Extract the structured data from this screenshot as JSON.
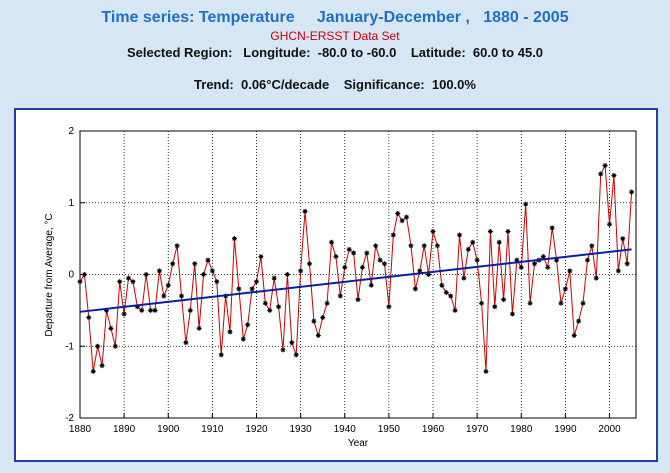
{
  "chart_data": {
    "type": "line",
    "title": "Time series: Temperature     January-December ,   1880 - 2005",
    "subtitle": "GHCN-ERSST Data Set",
    "region": "Selected Region:   Longitude:  -80.0 to -60.0    Latitude:  60.0 to 45.0",
    "trend_text": "Trend:  0.06°C/decade    Significance:  100.0%",
    "xlabel": "Year",
    "ylabel": "Departure from Average, °C",
    "x": [
      1880,
      1881,
      1882,
      1883,
      1884,
      1885,
      1886,
      1887,
      1888,
      1889,
      1890,
      1891,
      1892,
      1893,
      1894,
      1895,
      1896,
      1897,
      1898,
      1899,
      1900,
      1901,
      1902,
      1903,
      1904,
      1905,
      1906,
      1907,
      1908,
      1909,
      1910,
      1911,
      1912,
      1913,
      1914,
      1915,
      1916,
      1917,
      1918,
      1919,
      1920,
      1921,
      1922,
      1923,
      1924,
      1925,
      1926,
      1927,
      1928,
      1929,
      1930,
      1931,
      1932,
      1933,
      1934,
      1935,
      1936,
      1937,
      1938,
      1939,
      1940,
      1941,
      1942,
      1943,
      1944,
      1945,
      1946,
      1947,
      1948,
      1949,
      1950,
      1951,
      1952,
      1953,
      1954,
      1955,
      1956,
      1957,
      1958,
      1959,
      1960,
      1961,
      1962,
      1963,
      1964,
      1965,
      1966,
      1967,
      1968,
      1969,
      1970,
      1971,
      1972,
      1973,
      1974,
      1975,
      1976,
      1977,
      1978,
      1979,
      1980,
      1981,
      1982,
      1983,
      1984,
      1985,
      1986,
      1987,
      1988,
      1989,
      1990,
      1991,
      1992,
      1993,
      1994,
      1995,
      1996,
      1997,
      1998,
      1999,
      2000,
      2001,
      2002,
      2003,
      2004,
      2005
    ],
    "series": [
      {
        "name": "Temperature",
        "color": "#cc0000",
        "marker_color": "#000000",
        "values": [
          -0.1,
          0.0,
          -0.6,
          -1.35,
          -1.0,
          -1.27,
          -0.5,
          -0.75,
          -1.0,
          -0.1,
          -0.55,
          -0.05,
          -0.1,
          -0.45,
          -0.5,
          0.0,
          -0.5,
          -0.5,
          0.05,
          -0.3,
          -0.15,
          0.15,
          0.4,
          -0.3,
          -0.95,
          -0.5,
          0.15,
          -0.75,
          0.0,
          0.2,
          0.05,
          -0.1,
          -1.12,
          -0.3,
          -0.8,
          0.5,
          -0.2,
          -0.9,
          -0.7,
          -0.2,
          -0.1,
          0.25,
          -0.4,
          -0.5,
          -0.05,
          -0.45,
          -1.05,
          0.0,
          -0.95,
          -1.12,
          0.05,
          0.88,
          0.15,
          -0.65,
          -0.85,
          -0.6,
          -0.4,
          0.45,
          0.25,
          -0.3,
          0.1,
          0.35,
          0.3,
          -0.35,
          0.1,
          0.3,
          -0.15,
          0.4,
          0.2,
          0.15,
          -0.45,
          0.55,
          0.85,
          0.75,
          0.8,
          0.4,
          -0.2,
          0.05,
          0.4,
          0.0,
          0.6,
          0.4,
          -0.15,
          -0.25,
          -0.3,
          -0.5,
          0.55,
          -0.05,
          0.35,
          0.45,
          0.2,
          -0.4,
          -1.35,
          0.6,
          -0.45,
          0.45,
          -0.35,
          0.6,
          -0.55,
          0.2,
          0.1,
          0.98,
          -0.4,
          0.15,
          0.2,
          0.25,
          0.1,
          0.65,
          0.2,
          -0.4,
          -0.2,
          0.05,
          -0.85,
          -0.65,
          -0.4,
          0.2,
          0.4,
          -0.05,
          1.4,
          1.52,
          0.7,
          1.38,
          0.05,
          0.5,
          0.15,
          1.15
        ]
      }
    ],
    "trend": {
      "color": "#0a1fa0",
      "x": [
        1880,
        2005
      ],
      "values": [
        -0.52,
        0.35
      ]
    },
    "xlim": [
      1880,
      2006
    ],
    "ylim": [
      -2,
      2
    ],
    "xticks": [
      1880,
      1890,
      1900,
      1910,
      1920,
      1930,
      1940,
      1950,
      1960,
      1970,
      1980,
      1990,
      2000
    ],
    "yticks": [
      -2,
      -1,
      0,
      1,
      2
    ],
    "grid": true
  }
}
